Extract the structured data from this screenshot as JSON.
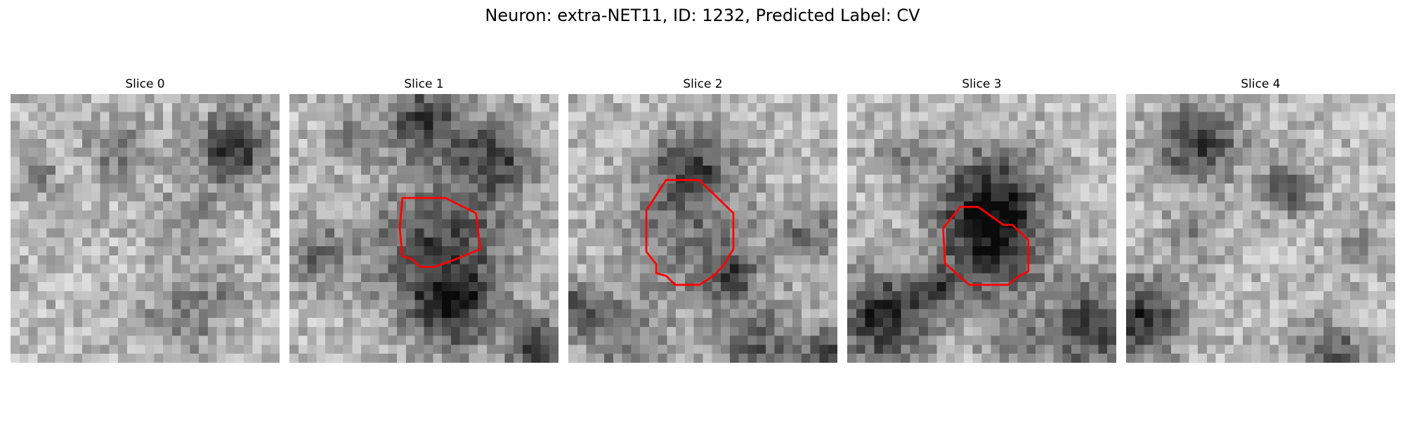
{
  "figure_title": "Neuron: extra-NET11, ID: 1232, Predicted Label: CV",
  "contour_color": "#ff0000",
  "colormap": "gray",
  "panels": [
    {
      "title": "Slice 0",
      "has_contour": false
    },
    {
      "title": "Slice 1",
      "has_contour": true
    },
    {
      "title": "Slice 2",
      "has_contour": true
    },
    {
      "title": "Slice 3",
      "has_contour": true
    },
    {
      "title": "Slice 4",
      "has_contour": false
    }
  ]
}
